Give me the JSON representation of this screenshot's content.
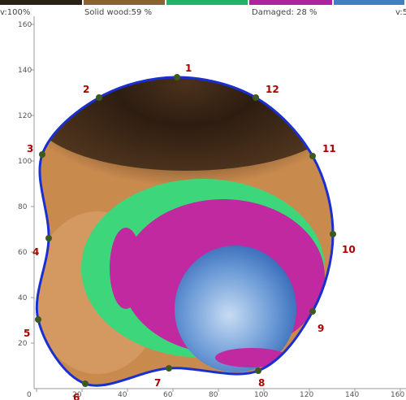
{
  "legend": [
    {
      "label": "v:100%",
      "color": "#2b2016"
    },
    {
      "label": "Solid wood:59 %",
      "color": "#8a6236"
    },
    {
      "label": "",
      "color": "#1fb46a"
    },
    {
      "label": "Damaged: 28 %",
      "color": "#b0229a"
    },
    {
      "label": "v:5",
      "color": "#3f7fc4"
    }
  ],
  "axes": {
    "xticks": [
      0,
      20,
      40,
      60,
      80,
      100,
      120,
      140,
      160
    ],
    "yticks": [
      20,
      40,
      60,
      80,
      100,
      120,
      140,
      160
    ]
  },
  "points": [
    "1",
    "2",
    "3",
    "4",
    "5",
    "6",
    "7",
    "8",
    "9",
    "10",
    "11",
    "12"
  ]
}
